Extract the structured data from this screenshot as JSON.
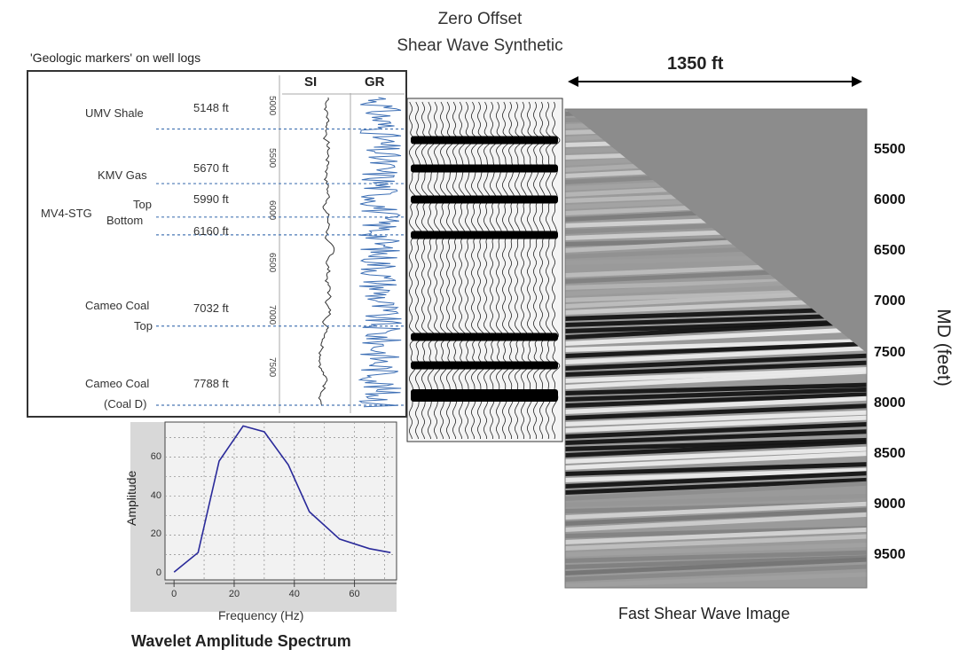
{
  "well_log": {
    "title": "'Geologic markers' on well logs",
    "track_si": "SI",
    "track_gr": "GR",
    "depth_ticks": [
      "5000",
      "5500",
      "6000",
      "6500",
      "7000",
      "7500"
    ],
    "markers": [
      {
        "name": "UMV Shale",
        "depth": "5148 ft"
      },
      {
        "name": "KMV Gas",
        "depth": "5670 ft"
      },
      {
        "name": "Top",
        "depth": "5990 ft"
      },
      {
        "name": "Bottom",
        "depth": "6160 ft"
      },
      {
        "name": "Cameo Coal",
        "depth": "7032 ft",
        "sub": "Top"
      },
      {
        "name": "Cameo Coal",
        "depth": "7788 ft",
        "sub": "(Coal D)"
      }
    ],
    "group_label": "MV4-STG"
  },
  "synthetic": {
    "title_line1": "Zero Offset",
    "title_line2": "Shear Wave Synthetic"
  },
  "image": {
    "width_label": "1350 ft",
    "caption": "Fast Shear Wave Image",
    "axis_label": "MD  (feet)",
    "md_ticks": [
      "5500",
      "6000",
      "6500",
      "7000",
      "7500",
      "8000",
      "8500",
      "9000",
      "9500"
    ]
  },
  "chart_data": {
    "type": "line",
    "title": "Wavelet Amplitude  Spectrum",
    "xlabel": "Frequency (Hz)",
    "ylabel": "Amplitude",
    "x": [
      0,
      8,
      15,
      23,
      30,
      38,
      45,
      55,
      65,
      72
    ],
    "y": [
      1,
      11,
      58,
      76,
      73,
      56,
      32,
      18,
      13,
      11
    ],
    "xlim": [
      -3,
      74
    ],
    "ylim": [
      -3,
      78
    ],
    "xticks": [
      "0",
      "20",
      "40",
      "60"
    ],
    "yticks": [
      "0",
      "20",
      "40",
      "60"
    ],
    "grid": true,
    "line_color": "#2a2a9a"
  }
}
